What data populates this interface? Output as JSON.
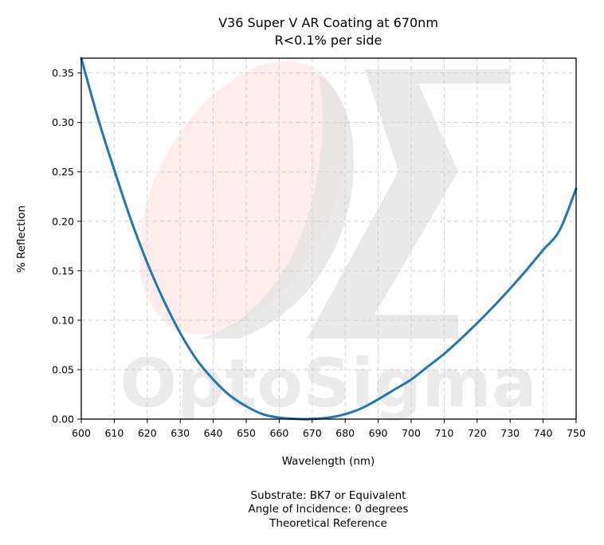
{
  "chart_data": {
    "type": "line",
    "title": "V36 Super V AR Coating at 670nm",
    "subtitle": "R<0.1% per side",
    "xlabel": "Wavelength (nm)",
    "ylabel": "% Reflection",
    "xlim": [
      600,
      750
    ],
    "ylim": [
      0,
      0.365
    ],
    "x_ticks": [
      "600",
      "610",
      "620",
      "630",
      "640",
      "650",
      "660",
      "670",
      "680",
      "690",
      "700",
      "710",
      "720",
      "730",
      "740",
      "750"
    ],
    "y_ticks": [
      "0.00",
      "0.05",
      "0.10",
      "0.15",
      "0.20",
      "0.25",
      "0.30",
      "0.35"
    ],
    "grid": true,
    "series": [
      {
        "color": "#1f77b4",
        "x": [
          600,
          605,
          610,
          615,
          620,
          625,
          630,
          635,
          640,
          645,
          650,
          655,
          660,
          665,
          669,
          675,
          680,
          685,
          690,
          695,
          700,
          705,
          710,
          715,
          720,
          725,
          730,
          735,
          740,
          745,
          750
        ],
        "y": [
          0.365,
          0.305,
          0.252,
          0.202,
          0.158,
          0.12,
          0.087,
          0.06,
          0.04,
          0.024,
          0.013,
          0.005,
          0.0015,
          0.0002,
          0.0,
          0.0015,
          0.005,
          0.011,
          0.02,
          0.03,
          0.04,
          0.053,
          0.066,
          0.081,
          0.097,
          0.114,
          0.132,
          0.151,
          0.171,
          0.191,
          0.233
        ]
      }
    ],
    "footer": [
      "Substrate: BK7 or Equivalent",
      "Angle of Incidence: 0 degrees",
      "Theoretical Reference"
    ],
    "watermark": "OptoSigma"
  }
}
